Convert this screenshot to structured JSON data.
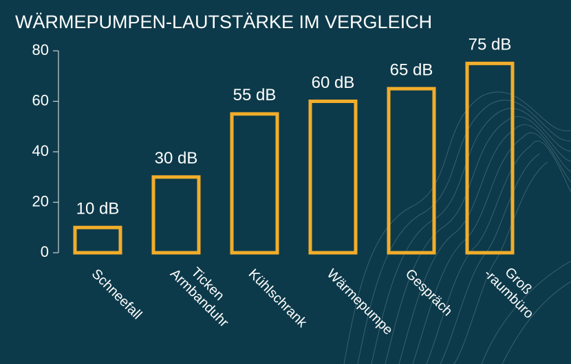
{
  "chart_data": {
    "type": "bar",
    "title": "WÄRMEPUMPEN-LAUTSTÄRKE IM VERGLEICH",
    "categories": [
      "Schneefall",
      "Ticken Armbanduhr",
      "Kühlschrank",
      "Wärmepumpe",
      "Gespräch",
      "Groß -raumbüro"
    ],
    "values": [
      10,
      30,
      55,
      60,
      65,
      75
    ],
    "value_labels": [
      "10 dB",
      "30 dB",
      "55 dB",
      "60 dB",
      "65 dB",
      "75 dB"
    ],
    "color": "#f2ad2b",
    "ylim": [
      0,
      80
    ],
    "yticks": [
      0,
      20,
      40,
      60,
      80
    ]
  }
}
